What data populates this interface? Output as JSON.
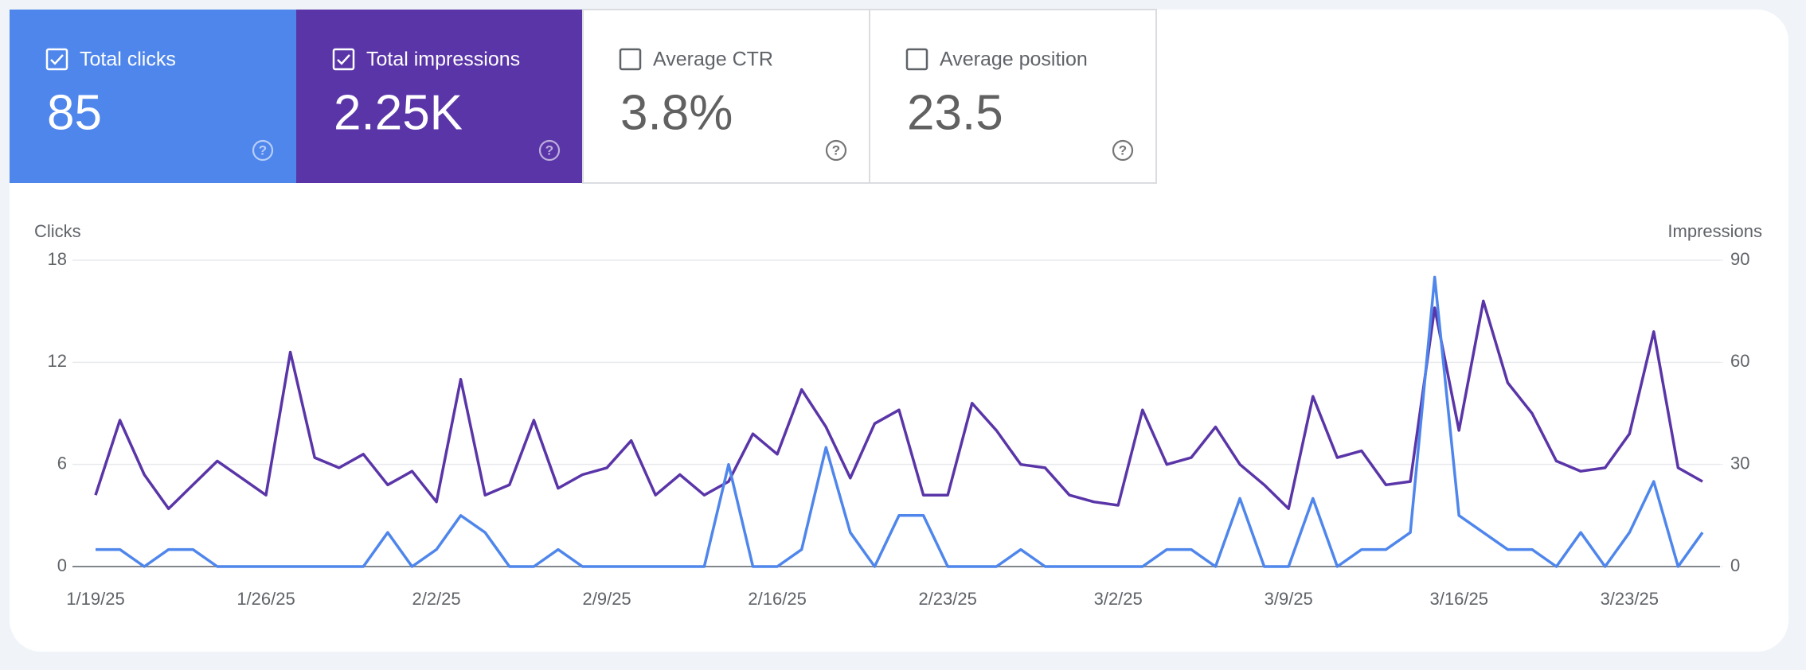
{
  "cards": [
    {
      "label": "Total clicks",
      "value": "85",
      "checked": true,
      "color": "#4f86ec"
    },
    {
      "label": "Total impressions",
      "value": "2.25K",
      "checked": true,
      "color": "#5a35a8"
    },
    {
      "label": "Average CTR",
      "value": "3.8%",
      "checked": false,
      "color": "#ffffff"
    },
    {
      "label": "Average position",
      "value": "23.5",
      "checked": false,
      "color": "#ffffff"
    }
  ],
  "chart_data": {
    "type": "line",
    "categories": [
      "1/19/25",
      null,
      null,
      null,
      null,
      null,
      null,
      "1/26/25",
      null,
      null,
      null,
      null,
      null,
      null,
      "2/2/25",
      null,
      null,
      null,
      null,
      null,
      null,
      "2/9/25",
      null,
      null,
      null,
      null,
      null,
      null,
      "2/16/25",
      null,
      null,
      null,
      null,
      null,
      null,
      "2/23/25",
      null,
      null,
      null,
      null,
      null,
      null,
      "3/2/25",
      null,
      null,
      null,
      null,
      null,
      null,
      "3/9/25",
      null,
      null,
      null,
      null,
      null,
      null,
      "3/16/25",
      null,
      null,
      null,
      null,
      null,
      null,
      "3/23/25",
      null,
      null,
      null
    ],
    "series": [
      {
        "name": "Clicks",
        "color": "#4f86ec",
        "values": [
          1,
          1,
          0,
          1,
          1,
          0,
          0,
          0,
          0,
          0,
          0,
          0,
          2,
          0,
          1,
          3,
          2,
          0,
          0,
          1,
          0,
          0,
          0,
          0,
          0,
          0,
          6,
          0,
          0,
          1,
          7,
          2,
          0,
          3,
          3,
          0,
          0,
          0,
          1,
          0,
          0,
          0,
          0,
          0,
          1,
          1,
          0,
          4,
          0,
          0,
          4,
          0,
          1,
          1,
          2,
          17,
          3,
          2,
          1,
          1,
          0,
          2,
          0,
          2,
          5,
          0,
          2
        ]
      },
      {
        "name": "Impressions",
        "color": "#5a35a8",
        "axis": "y2",
        "values": [
          21,
          43,
          27,
          17,
          24,
          31,
          26,
          21,
          63,
          32,
          29,
          33,
          24,
          28,
          19,
          55,
          21,
          24,
          43,
          23,
          27,
          29,
          37,
          21,
          27,
          21,
          25,
          39,
          33,
          52,
          41,
          26,
          42,
          46,
          21,
          21,
          48,
          40,
          30,
          29,
          21,
          19,
          18,
          46,
          30,
          32,
          41,
          30,
          24,
          17,
          50,
          32,
          34,
          24,
          25,
          76,
          40,
          78,
          54,
          45,
          31,
          28,
          29,
          39,
          69,
          29,
          25
        ]
      }
    ],
    "ylim": [
      0,
      18
    ],
    "yticks": [
      0,
      6,
      12,
      18
    ],
    "y2lim": [
      0,
      90
    ],
    "y2ticks": [
      0,
      30,
      60,
      90
    ],
    "grid": true
  }
}
